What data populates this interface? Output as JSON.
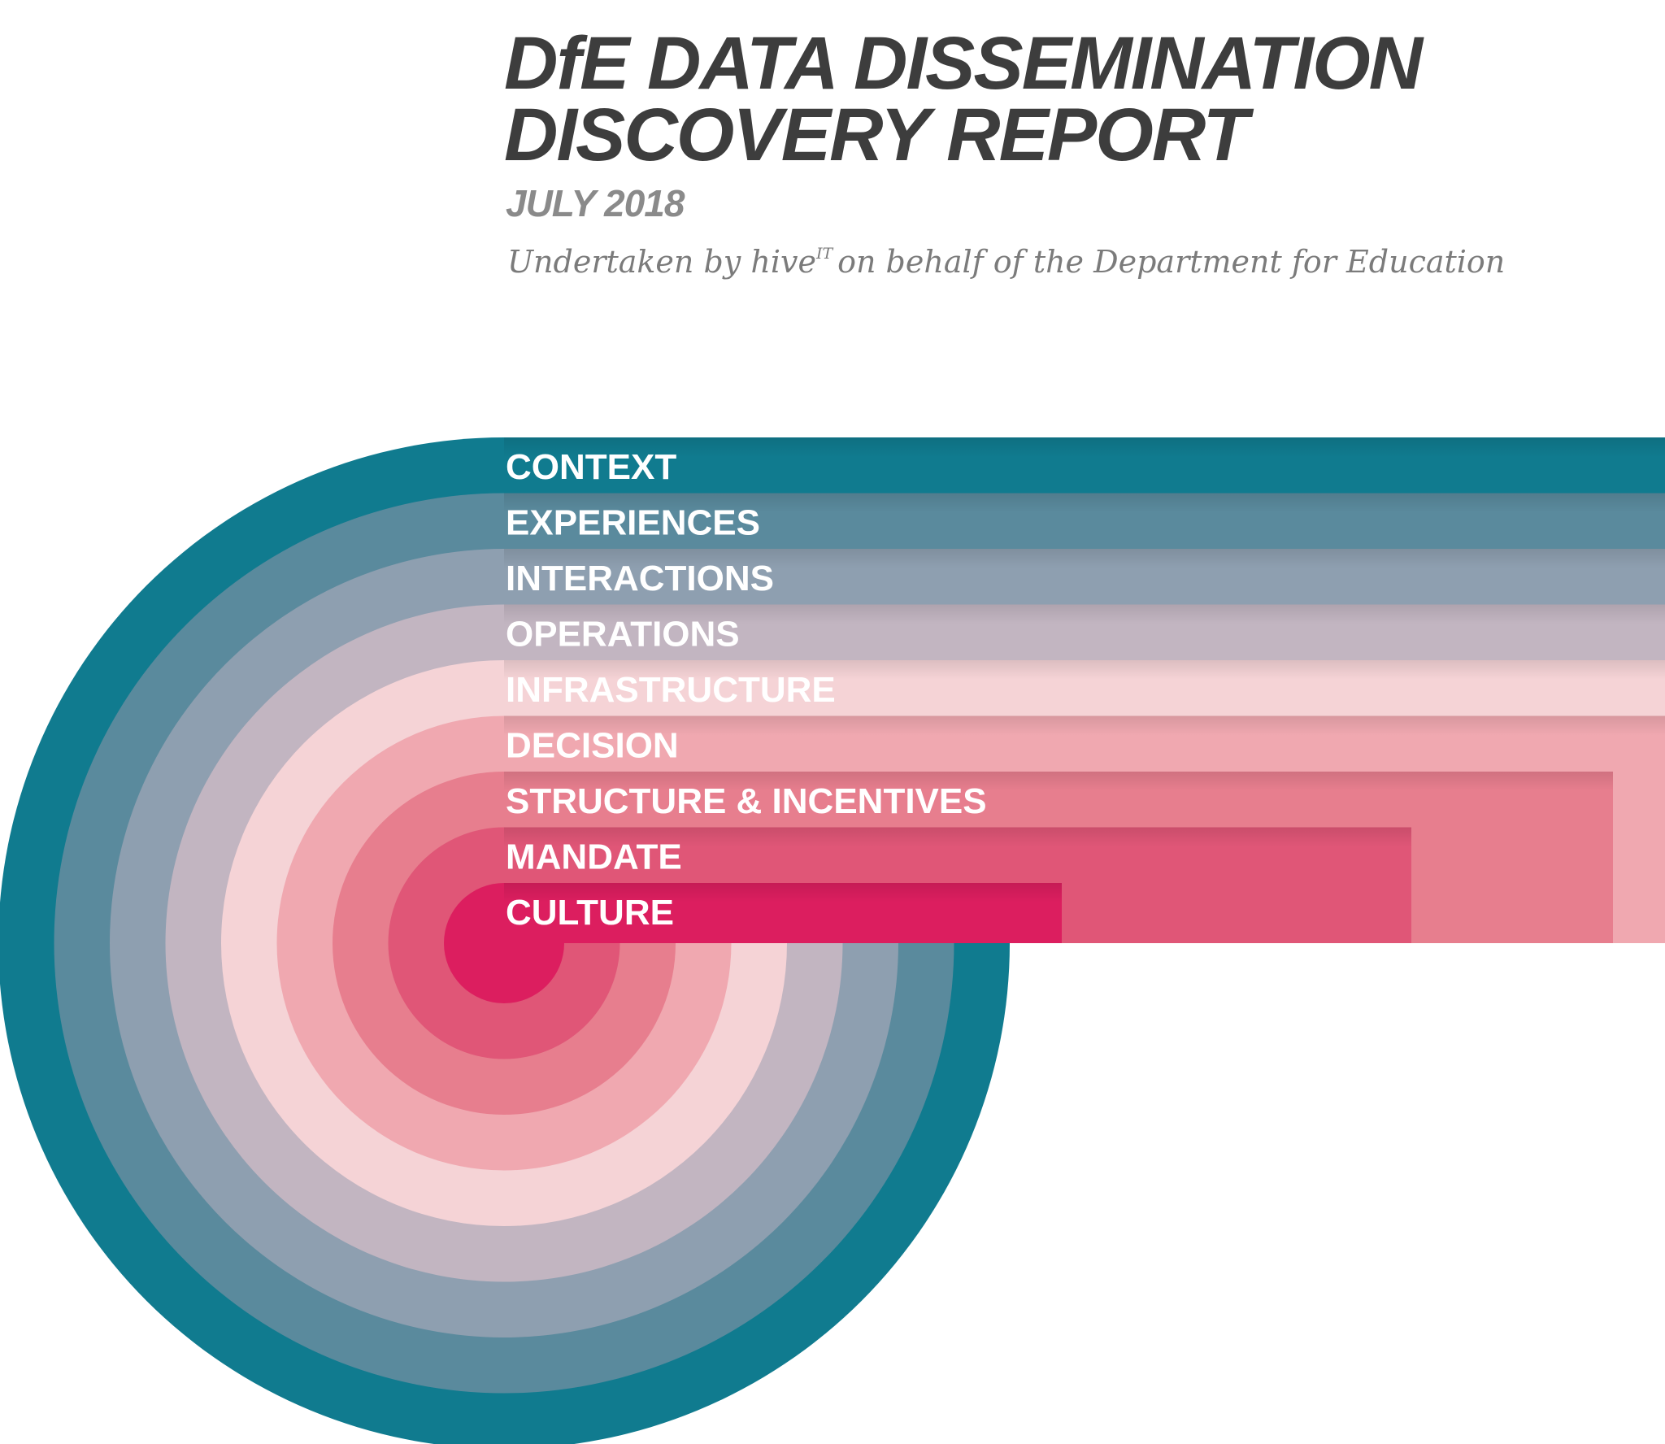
{
  "report": {
    "title_line1": "DfE DATA DISSEMINATION",
    "title_line2": "DISCOVERY REPORT",
    "date": "JULY 2018",
    "subtitle_before": "Undertaken by hive",
    "subtitle_superscript": "IT",
    "subtitle_after": "on behalf of the Department for Education"
  },
  "layers": [
    {
      "label": "CONTEXT",
      "color": "#107b8f"
    },
    {
      "label": "EXPERIENCES",
      "color": "#5a8a9d"
    },
    {
      "label": "INTERACTIONS",
      "color": "#8e9fb0"
    },
    {
      "label": "OPERATIONS",
      "color": "#c2b5c1"
    },
    {
      "label": "INFRASTRUCTURE",
      "color": "#f5d3d6"
    },
    {
      "label": "DECISION",
      "color": "#f0a8b0"
    },
    {
      "label": "STRUCTURE & INCENTIVES",
      "color": "#e77e8e"
    },
    {
      "label": "MANDATE",
      "color": "#e05677"
    },
    {
      "label": "CULTURE",
      "color": "#dc1e5f"
    }
  ]
}
